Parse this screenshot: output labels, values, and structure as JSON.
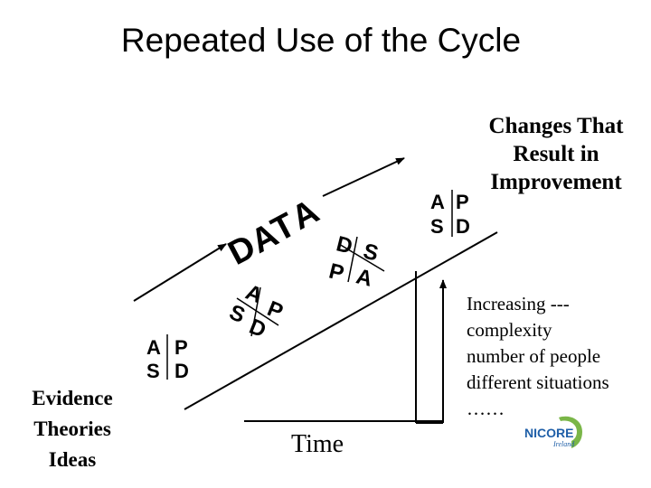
{
  "title": "Repeated Use of the Cycle",
  "cycle_small_1": {
    "a": "A",
    "p": "P",
    "s": "S",
    "d": "D"
  },
  "cycle_tilted": {
    "a": "A",
    "p": "P",
    "s": "S",
    "d": "D"
  },
  "data_word": {
    "d": "D",
    "a1": "A",
    "t": "T",
    "a2": "A"
  },
  "cycle_middle": {
    "d": "D",
    "s": "S",
    "p": "P",
    "a": "A"
  },
  "cycle_top": {
    "a": "A",
    "p": "P",
    "s": "S",
    "d": "D"
  },
  "changes": {
    "line1": "Changes That",
    "line2": "Result in",
    "line3": "Improvement"
  },
  "evidence": {
    "line1": "Evidence",
    "line2": "Theories",
    "line3": "Ideas"
  },
  "increasing": {
    "line1": "Increasing ---",
    "line2": "complexity",
    "line3": "number of people",
    "line4": "different situations",
    "line5": "……"
  },
  "time_label": "Time",
  "logo": {
    "name": "NICORE",
    "sub": "Ireland"
  },
  "colors": {
    "logo_blue": "#1f5fa8",
    "logo_green": "#7ab648",
    "line": "#000000"
  }
}
